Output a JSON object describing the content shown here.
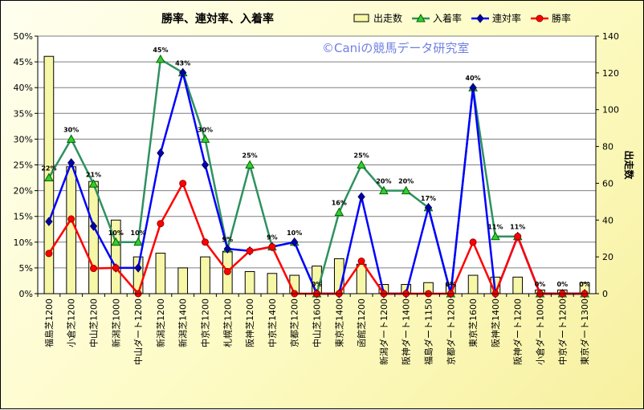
{
  "chart_data": {
    "type": "bar+line",
    "title": "勝率、連対率、入着率",
    "watermark": "©Caniの競馬データ研究室",
    "y2label": "出走数",
    "ylim": [
      0,
      50
    ],
    "y2lim": [
      0,
      140
    ],
    "yticks": [
      "0%",
      "5%",
      "10%",
      "15%",
      "20%",
      "25%",
      "30%",
      "35%",
      "40%",
      "45%",
      "50%"
    ],
    "y2ticks": [
      "0",
      "20",
      "40",
      "60",
      "80",
      "100",
      "120",
      "140"
    ],
    "legend_position": "top-right",
    "categories": [
      "福島芝1200",
      "小倉芝1200",
      "中山芝1200",
      "新潟芝1000",
      "中山ダート1200",
      "新潟芝1200",
      "新潟芝1400",
      "中京芝1200",
      "札幌芝1200",
      "阪神芝1200",
      "中京芝1400",
      "京都芝1200",
      "中山芝1600",
      "東京芝1400",
      "函館芝1200",
      "新潟ダート1200",
      "阪神ダート1400",
      "福島ダート1150",
      "京都ダート1200",
      "東京芝1600",
      "阪神芝1400",
      "阪神ダート1200",
      "小倉ダート1000",
      "中京ダート1200",
      "東京ダート1300"
    ],
    "series": [
      {
        "name": "出走数",
        "type": "bar",
        "axis": "right",
        "color": "#f7f7a8",
        "values": [
          129,
          69,
          61,
          40,
          20,
          22,
          14,
          20,
          23,
          12,
          11,
          10,
          15,
          19,
          16,
          5,
          5,
          6,
          5,
          10,
          9,
          9,
          2,
          2,
          6
        ]
      },
      {
        "name": "入着率",
        "type": "line",
        "axis": "left",
        "color": "#2e9160",
        "marker": "triangle",
        "marker_color": "#33cc33",
        "values": [
          22.5,
          30,
          21.3,
          10,
          10,
          45.5,
          42.9,
          30,
          8.7,
          25,
          9.1,
          10,
          0,
          15.8,
          25,
          20,
          20,
          16.7,
          0,
          40,
          11.1,
          11.1,
          0,
          0,
          0
        ]
      },
      {
        "name": "連対率",
        "type": "line",
        "axis": "left",
        "color": "#0000ff",
        "marker": "diamond",
        "marker_color": "#0000aa",
        "values": [
          14,
          25.4,
          13.1,
          5,
          5,
          27.3,
          42.9,
          25,
          8.7,
          8.3,
          9.1,
          10,
          0,
          0,
          18.8,
          0,
          0,
          16.7,
          0,
          40,
          0,
          11.1,
          0,
          0,
          0
        ]
      },
      {
        "name": "勝率",
        "type": "line",
        "axis": "left",
        "color": "#ff0000",
        "marker": "circle",
        "marker_color": "#ff0000",
        "values": [
          7.8,
          14.5,
          4.9,
          5,
          0,
          13.6,
          21.4,
          10,
          4.3,
          8.3,
          9.1,
          0,
          0,
          0,
          6.3,
          0,
          0,
          0,
          0,
          10,
          0,
          11.1,
          0,
          0,
          0
        ]
      }
    ],
    "data_labels": [
      "22%",
      "30%",
      "21%",
      "10%",
      "10%",
      "45%",
      "43%",
      "30%",
      "9%",
      "25%",
      "9%",
      "10%",
      "0%",
      "16%",
      "25%",
      "20%",
      "20%",
      "17%",
      "0%",
      "40%",
      "11%",
      "11%",
      "0%",
      "0%",
      "0%"
    ]
  }
}
